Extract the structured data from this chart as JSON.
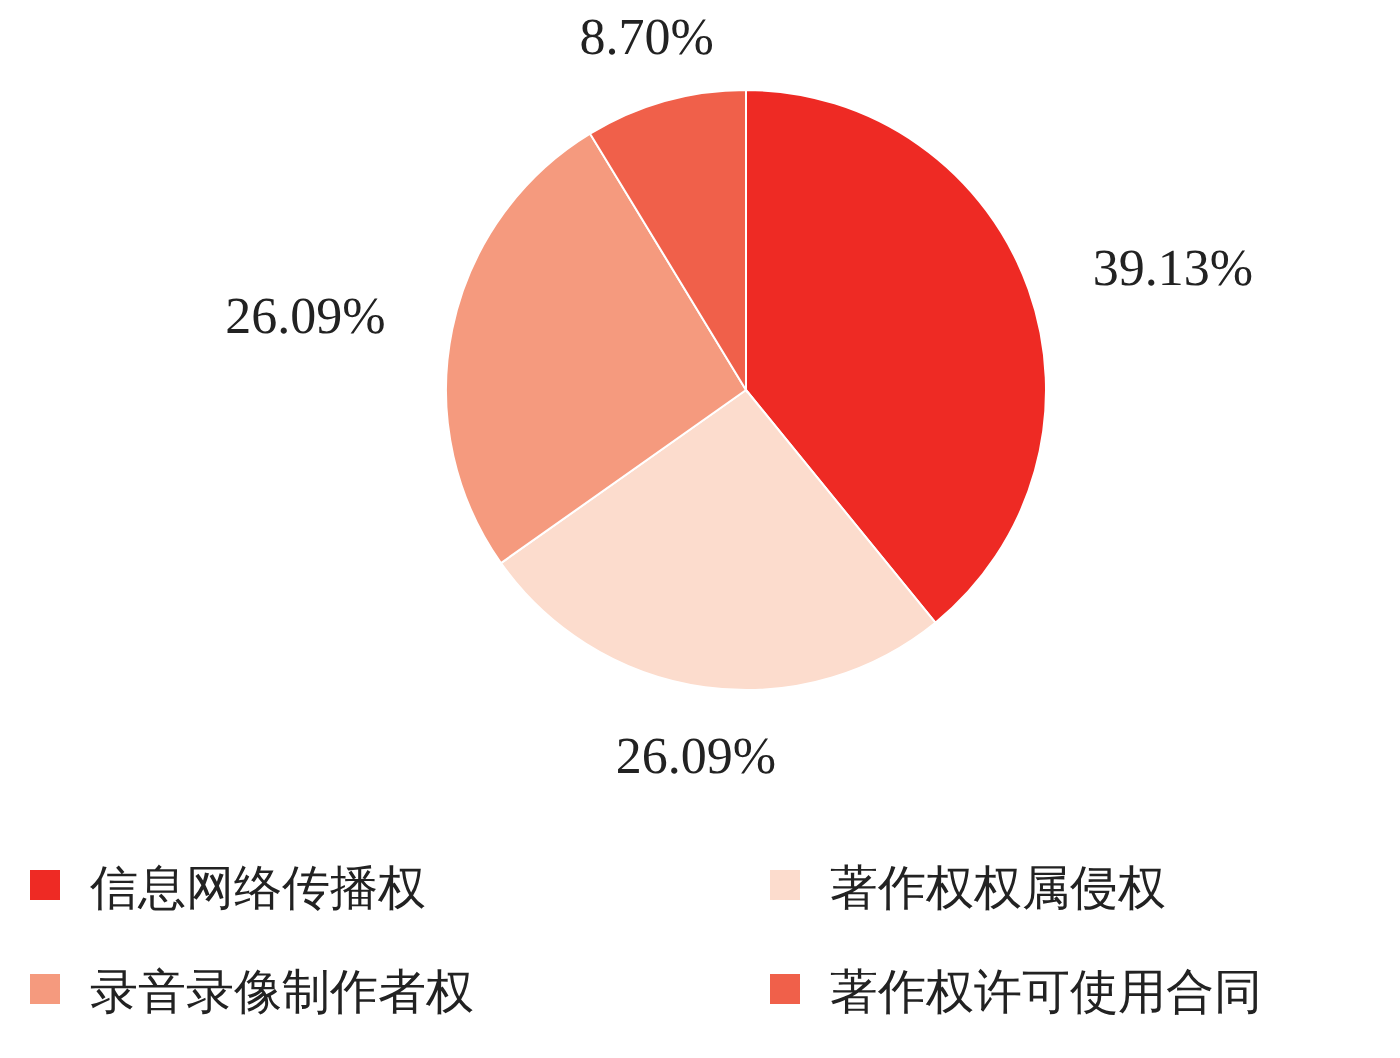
{
  "chart_data": {
    "type": "pie",
    "categories": [
      "信息网络传播权",
      "著作权权属侵权",
      "录音录像制作者权",
      "著作权许可使用合同"
    ],
    "values": [
      39.13,
      26.09,
      26.09,
      8.7
    ],
    "value_labels": [
      "39.13%",
      "26.09%",
      "26.09%",
      "8.70%"
    ],
    "colors": [
      "#ee2a24",
      "#fcdccd",
      "#f59a7e",
      "#f0604a"
    ],
    "legend": "bottom"
  }
}
